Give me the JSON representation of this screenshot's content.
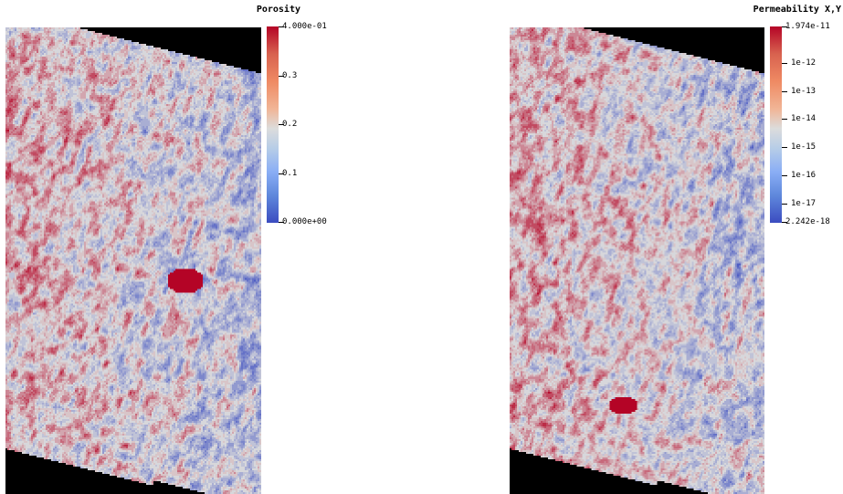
{
  "panels": {
    "porosity": {
      "title": "Porosity",
      "colorbar": {
        "labels": [
          "4.000e-01",
          "0.3",
          "0.2",
          "0.1",
          "0.000e+00"
        ],
        "min": 0.0,
        "max": 0.4,
        "scale": "linear",
        "colormap": "cool-to-warm"
      }
    },
    "permeability": {
      "title": "Permeability X,Y",
      "colorbar": {
        "labels": [
          "1.974e-11",
          "1e-12",
          "1e-13",
          "1e-14",
          "1e-15",
          "1e-16",
          "1e-17",
          "2.242e-18"
        ],
        "min": 2.242e-18,
        "max": 1.974e-11,
        "scale": "log",
        "colormap": "cool-to-warm"
      }
    }
  },
  "colors": {
    "low": "#3b4cc0",
    "mid": "#dcdcdc",
    "high": "#b40426"
  }
}
